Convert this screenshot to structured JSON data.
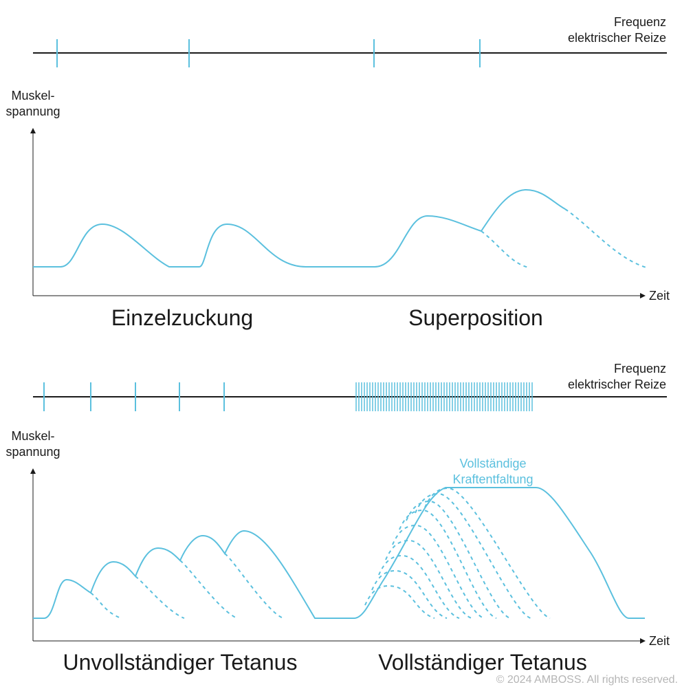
{
  "colors": {
    "accent": "#5bc0de",
    "ink": "#1a1a1a",
    "copyright": "#b5b5b5"
  },
  "top": {
    "frequency_label_line1": "Frequenz",
    "frequency_label_line2": "elektrischer Reize",
    "y_label_line1": "Muskel-",
    "y_label_line2": "spannung",
    "x_label": "Zeit",
    "left_title": "Einzelzuckung",
    "right_title": "Superposition"
  },
  "bottom": {
    "frequency_label_line1": "Frequenz",
    "frequency_label_line2": "elektrischer Reize",
    "y_label_line1": "Muskel-",
    "y_label_line2": "spannung",
    "x_label": "Zeit",
    "left_title": "Unvollständiger Tetanus",
    "right_title": "Vollständiger Tetanus",
    "annotation_line1": "Vollständige",
    "annotation_line2": "Kraftentfaltung"
  },
  "copyright": "© 2024 AMBOSS. All rights reserved."
}
